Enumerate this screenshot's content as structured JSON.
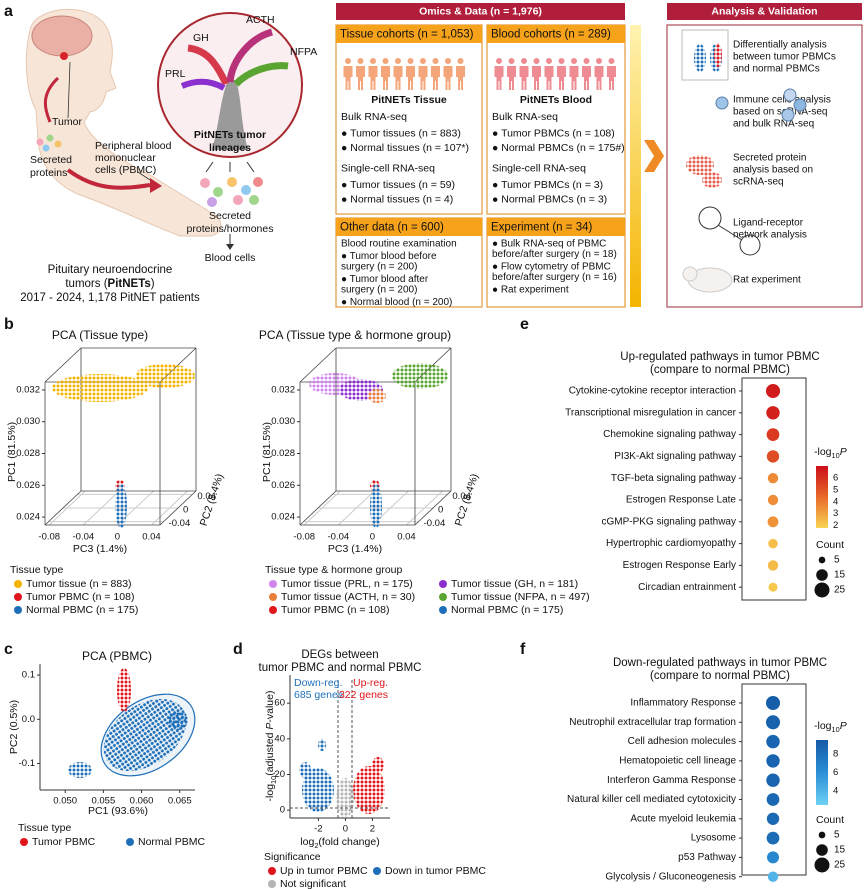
{
  "panel_labels": [
    "a",
    "b",
    "c",
    "d",
    "e",
    "f"
  ],
  "overview": {
    "illustration": {
      "tumor": "Tumor",
      "secreted": [
        "Secreted",
        "proteins"
      ],
      "pbmc": [
        "Peripheral blood",
        "mononuclear",
        "cells (PBMC)"
      ],
      "caption": [
        "Pituitary neuroendocrine",
        "tumors (",
        "PitNETs",
        ")",
        "2017 - 2024, 1,178 PitNET patients"
      ]
    },
    "lineage": {
      "types": [
        "GH",
        "ACTH",
        "NFPA",
        "PRL"
      ],
      "title": [
        "PitNETs tumor",
        "lineages"
      ],
      "secreted": [
        "Secreted",
        "proteins/hormones"
      ],
      "blood": "Blood cells"
    },
    "omics": {
      "header": "Omics & Data (n = 1,976)",
      "cohorts": [
        {
          "title": "Tissue cohorts (n = 1,053)",
          "subtitle": "PitNETs Tissue",
          "lines": [
            "Bulk RNA-seq",
            "● Tumor tissues (n = 883)",
            "● Normal tissues (n = 107*)",
            "Single-cell RNA-seq",
            "● Tumor tissues (n = 59)",
            "● Normal tissues (n = 4)"
          ]
        },
        {
          "title": "Blood cohorts (n = 289)",
          "subtitle": "PitNETs Blood",
          "lines": [
            "Bulk RNA-seq",
            "● Tumor PBMCs (n = 108)",
            "● Normal PBMCs (n = 175#)",
            "Single-cell RNA-seq",
            "● Tumor PBMCs (n = 3)",
            "● Normal PBMCs (n = 3)"
          ]
        },
        {
          "title": "Other data (n = 600)",
          "lines": [
            "Blood routine examination",
            "● Tumor blood before",
            "surgery (n = 200)",
            "● Tumor blood after",
            "surgery (n = 200)",
            "● Normal blood (n = 200)"
          ]
        },
        {
          "title": "Experiment (n = 34)",
          "lines": [
            "● Bulk RNA-seq of PBMC",
            "before/after surgery (n = 18)",
            "● Flow cytometry of PBMC",
            "before/after surgery (n = 16)",
            "● Rat experiment"
          ]
        }
      ]
    },
    "analysis": {
      "header": "Analysis & Validation",
      "items": [
        [
          "Differentially analysis",
          "between tumor PBMCs",
          "and normal PBMCs"
        ],
        [
          "Immune cells analysis",
          "based on scRNA-seq",
          "and bulk RNA-seq"
        ],
        [
          "Secreted protein",
          "analysis based on",
          "scRNA-seq"
        ],
        [
          "Ligand-receptor",
          "network analysis"
        ],
        [
          "Rat experiment"
        ]
      ]
    }
  },
  "chart_data": [
    {
      "type": "scatter3d",
      "title": "PCA (Tissue type)",
      "xlabel": "PC3 (1.4%)",
      "ylabel": "PC1 (81.5%)",
      "zlabel": "PC2 (8.4%)",
      "xlim": [
        -0.085,
        0.05
      ],
      "xticks": [
        -0.08,
        -0.04,
        0,
        0.04
      ],
      "ylim": [
        0.0235,
        0.0325
      ],
      "yticks": [
        0.024,
        0.026,
        0.028,
        {
          "value": 0.03,
          "label": "0.030"
        },
        0.032
      ],
      "zlim": [
        -0.05,
        0.05
      ],
      "zticks": [
        -0.04,
        0,
        0.04
      ],
      "legend_title": "Tissue type",
      "series": [
        {
          "name": "Tumor tissue (n = 883)",
          "color": "#f3b400"
        },
        {
          "name": "Tumor PBMC (n = 108)",
          "color": "#e0161b"
        },
        {
          "name": "Normal PBMC (n = 175)",
          "color": "#1f6fb8"
        }
      ]
    },
    {
      "type": "scatter3d",
      "title": "PCA (Tissue type & hormone group)",
      "xlabel": "PC3 (1.4%)",
      "ylabel": "PC1 (81.5%)",
      "zlabel": "PC2 (8.4%)",
      "xlim": [
        -0.085,
        0.05
      ],
      "xticks": [
        -0.08,
        -0.04,
        0,
        0.04
      ],
      "ylim": [
        0.0235,
        0.0325
      ],
      "yticks": [
        0.024,
        0.026,
        0.028,
        {
          "value": 0.03,
          "label": "0.030"
        },
        0.032
      ],
      "zlim": [
        -0.05,
        0.05
      ],
      "zticks": [
        -0.04,
        0,
        0.04
      ],
      "legend_title": "Tissue type & hormone group",
      "series": [
        {
          "name": "Tumor tissue (PRL, n = 175)",
          "color": "#cf86ec"
        },
        {
          "name": "Tumor tissue (GH, n = 181)",
          "color": "#8b2fcf"
        },
        {
          "name": "Tumor tissue (ACTH, n = 30)",
          "color": "#e8803a"
        },
        {
          "name": "Tumor tissue (NFPA, n = 497)",
          "color": "#5aa532"
        },
        {
          "name": "Tumor PBMC (n = 108)",
          "color": "#e0161b"
        },
        {
          "name": "Normal PBMC (n = 175)",
          "color": "#1f6fb8"
        }
      ]
    },
    {
      "type": "scatter",
      "title": "PCA (PBMC)",
      "xlabel": "PC1 (93.6%)",
      "ylabel": "PC2 (0.5%)",
      "xlim": [
        0.0467,
        0.067
      ],
      "xticks": [
        {
          "value": 0.05,
          "label": "0.050"
        },
        0.055,
        {
          "value": 0.06,
          "label": "0.060"
        },
        0.065
      ],
      "ylim": [
        -0.16,
        0.125
      ],
      "yticks": [
        -0.1,
        {
          "value": 0,
          "label": "0.0"
        },
        0.1
      ],
      "legend_title": "Tissue type",
      "series": [
        {
          "name": "Tumor PBMC",
          "color": "#e0161b"
        },
        {
          "name": "Normal PBMC",
          "color": "#1f6fb8"
        }
      ]
    },
    {
      "type": "volcano",
      "title": [
        "DEGs between",
        "tumor PBMC and normal PBMC"
      ],
      "xlabel": [
        "log",
        "2",
        "(fold change)"
      ],
      "ylabel": [
        "-log",
        "10",
        "(adjusted ",
        "P",
        "-value)"
      ],
      "xlim": [
        -4.1,
        3.3
      ],
      "xticks": [
        -2,
        0,
        2
      ],
      "ylim": [
        -4.4,
        75.8
      ],
      "yticks": [
        0,
        20,
        40,
        60
      ],
      "annotations": {
        "down": [
          "Down-reg.",
          "685 genes"
        ],
        "up": [
          "Up-reg.",
          "322 genes"
        ]
      },
      "legend_title": "Significance",
      "series": [
        {
          "name": "Up in tumor PBMC",
          "color": "#e0161b"
        },
        {
          "name": "Down in tumor PBMC",
          "color": "#1f6fb8"
        },
        {
          "name": "Not significant",
          "color": "#b5b5b5"
        }
      ]
    },
    {
      "type": "dot",
      "title": [
        "Up-regulated pathways in tumor PBMC",
        "(compare to normal PBMC)"
      ],
      "categories": [
        "Cytokine-cytokine receptor interaction",
        "Transcriptional misregulation in cancer",
        "Chemokine signaling pathway",
        "PI3K-Akt signaling pathway",
        "TGF-beta signaling pathway",
        "Estrogen Response Late",
        "cGMP-PKG signaling pathway",
        "Hypertrophic cardiomyopathy",
        "Estrogen Response Early",
        "Circadian entrainment"
      ],
      "values": [
        6.6,
        6.5,
        5.8,
        5.2,
        3.6,
        3.5,
        3.4,
        2.3,
        2.4,
        2.1
      ],
      "counts": [
        22,
        20,
        18,
        17,
        12,
        12,
        13,
        10,
        12,
        9
      ],
      "colorbar": {
        "title": [
          "-log",
          "10",
          "P"
        ],
        "lim": [
          1.8,
          7.0
        ],
        "ticks": [
          2,
          3,
          4,
          5,
          6
        ],
        "colors": [
          "#f9d452",
          "#e8692a",
          "#cc0e1a"
        ]
      },
      "size_legend": {
        "title": "Count",
        "ticks": [
          5,
          15,
          25
        ]
      }
    },
    {
      "type": "dot",
      "title": [
        "Down-regulated pathways in tumor PBMC",
        "(compare to normal PBMC)"
      ],
      "categories": [
        "Inflammatory Response",
        "Neutrophil extracellular trap formation",
        "Cell adhesion molecules",
        "Hematopoietic cell lineage",
        "Interferon Gamma Response",
        "Natural killer cell mediated cytotoxicity",
        "Acute myeloid leukemia",
        "Lysosome",
        "p53 Pathway",
        "Glycolysis / Gluconeogenesis"
      ],
      "values": [
        9.2,
        9.0,
        8.8,
        8.8,
        8.7,
        8.6,
        8.4,
        8.3,
        6.5,
        4.0
      ],
      "counts": [
        22,
        22,
        20,
        20,
        20,
        18,
        17,
        18,
        16,
        12
      ],
      "colorbar": {
        "title": [
          "-log",
          "10",
          "P"
        ],
        "lim": [
          2.5,
          9.5
        ],
        "ticks": [
          4,
          6,
          8
        ],
        "colors": [
          "#6fd0f5",
          "#2a8fd6",
          "#1559a6"
        ]
      },
      "size_legend": {
        "title": "Count",
        "ticks": [
          5,
          15,
          25
        ]
      }
    }
  ]
}
